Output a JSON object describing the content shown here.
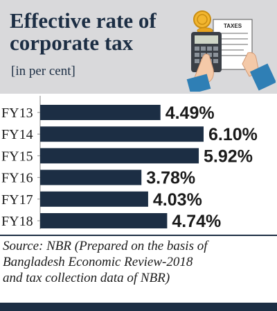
{
  "header": {
    "title_line1": "Effective rate of",
    "title_line2": "corporate tax",
    "unit": "[in per cent]",
    "illustration": {
      "icon": "calculator-tax-form-icon",
      "form_label": "TAXES",
      "colors": {
        "coin": "#f2b630",
        "sleeve": "#2f7fb5",
        "calculator": "#3a3f46"
      }
    }
  },
  "chart_data": {
    "type": "bar",
    "orientation": "horizontal",
    "categories": [
      "FY13",
      "FY14",
      "FY15",
      "FY16",
      "FY17",
      "FY18"
    ],
    "values": [
      4.49,
      6.1,
      5.92,
      3.78,
      4.03,
      4.74
    ],
    "value_labels": [
      "4.49%",
      "6.10%",
      "5.92%",
      "3.78%",
      "4.03%",
      "4.74%"
    ],
    "title": "Effective rate of corporate tax",
    "xlabel": "",
    "ylabel": "",
    "xlim": [
      0,
      6.1
    ],
    "grid": false,
    "colors": {
      "bar": "#1c2e44",
      "label": "#1a1a1a",
      "axis": "#888888"
    }
  },
  "footer": {
    "source_line1": "Source: NBR (Prepared on the basis of",
    "source_line2": "Bangladesh Economic Review-2018",
    "source_line3": "and tax collection data of NBR)"
  }
}
